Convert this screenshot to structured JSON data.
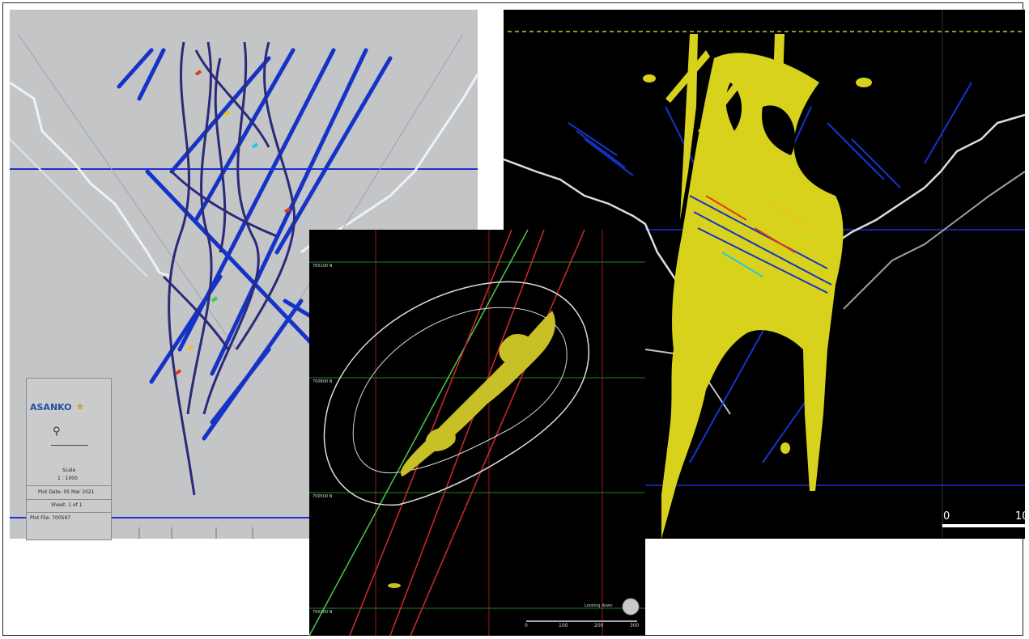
{
  "left_section": {
    "title_block": {
      "logo_text": "ASANKO",
      "scale_label": "Scale",
      "scale_value": "1 : 1000",
      "plot_date": "Plot Date: 05 Mar 2021",
      "sheet": "Sheet: 1 of 1",
      "plot_file": "Plot File: 700597"
    }
  },
  "plan_view": {
    "northing_labels": [
      "700100 N",
      "700800 N",
      "700500 N",
      "700200 N"
    ],
    "view_label": "Looking down",
    "scale_ticks": [
      "0",
      "100",
      "200",
      "300"
    ]
  },
  "right_section": {
    "scale_ticks": [
      "0",
      "10"
    ]
  },
  "colors": {
    "orebody": "#d9d21c",
    "drillhole_blue": "#1633c8",
    "grid_blue": "#1f2fd0",
    "pit_outline": "#d8dde0",
    "grid_green": "#1c8a1c",
    "grid_red": "#9a1a1a"
  }
}
